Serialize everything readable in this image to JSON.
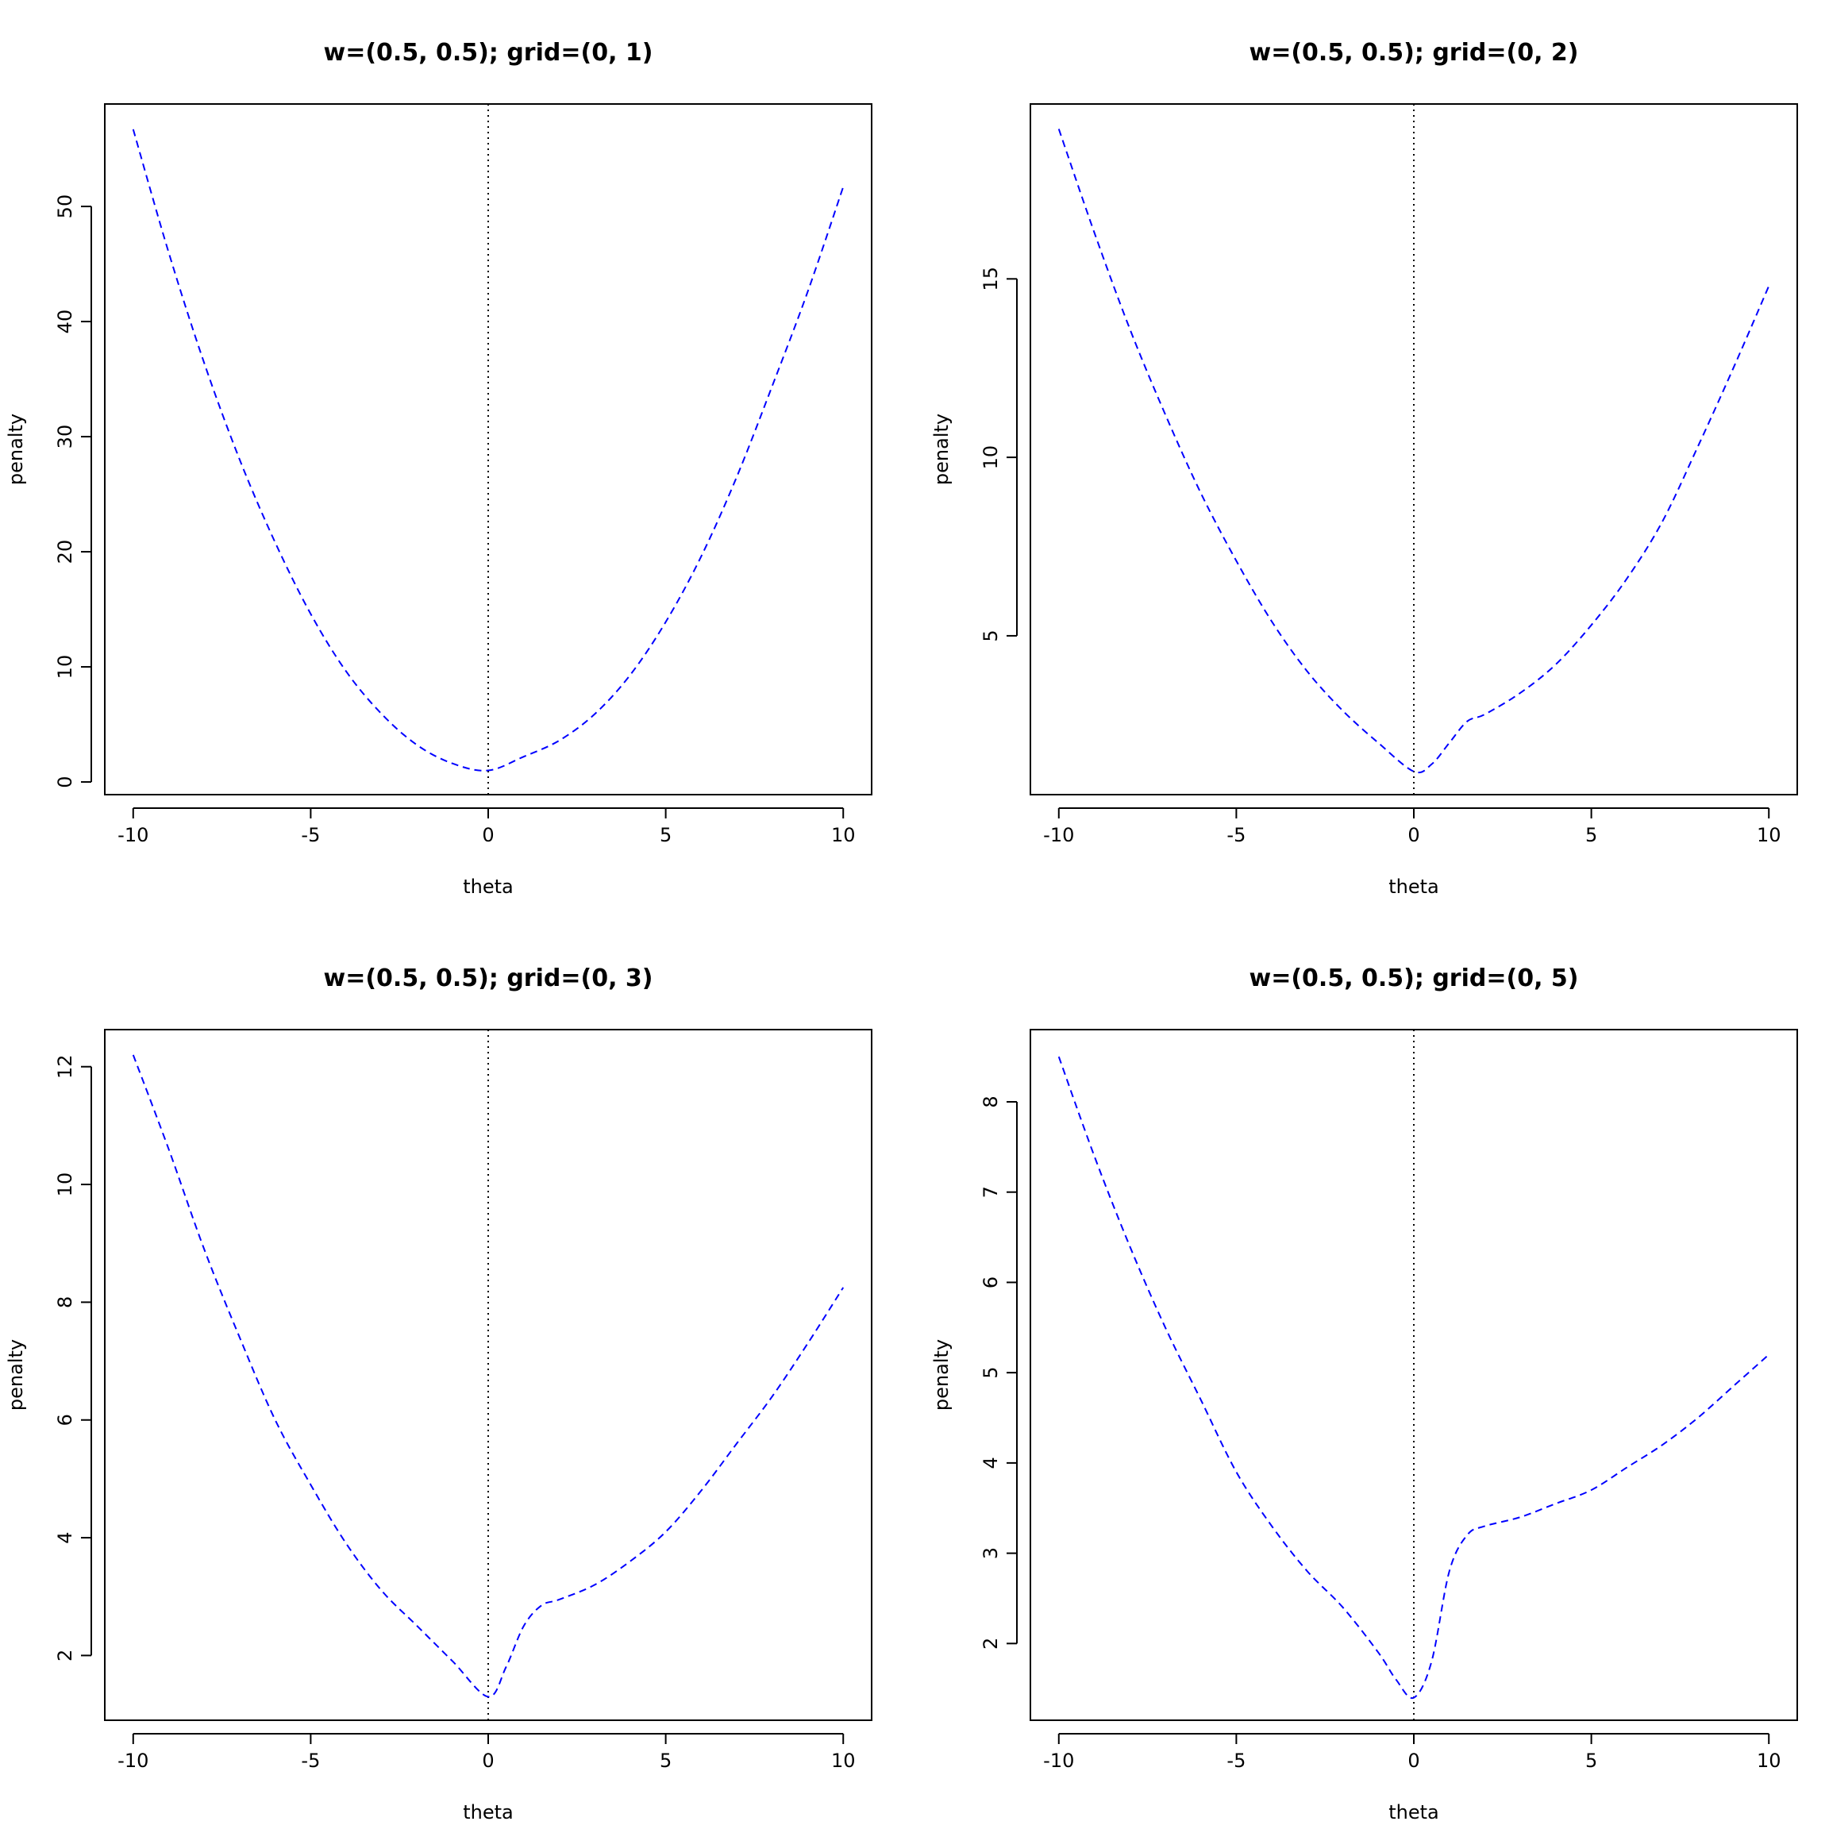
{
  "chart_data": [
    {
      "type": "line",
      "title": "w=(0.5, 0.5); grid=(0, 1)",
      "xlabel": "theta",
      "ylabel": "penalty",
      "xlim": [
        -10.8,
        10.8
      ],
      "ylim": [
        -1.1,
        58.9
      ],
      "xticks": [
        -10,
        -5,
        0,
        5,
        10
      ],
      "xtick_labels": [
        "-10",
        "-5",
        "0",
        "5",
        "10"
      ],
      "yticks": [
        0,
        10,
        20,
        30,
        40,
        50
      ],
      "ytick_labels": [
        "0",
        "10",
        "20",
        "30",
        "40",
        "50"
      ],
      "vline": {
        "x": 0,
        "style": "dotted",
        "color": "#000000"
      },
      "series": [
        {
          "color": "#0000ff",
          "style": "dashed",
          "x": [
            -10,
            -9,
            -8,
            -7,
            -6,
            -5,
            -4,
            -3,
            -2,
            -1,
            0,
            1,
            2,
            3,
            4,
            5,
            6,
            7,
            8,
            9,
            10
          ],
          "y": [
            56.7,
            46.0,
            36.4,
            28.0,
            20.8,
            14.6,
            9.6,
            5.9,
            3.2,
            1.6,
            1.0,
            2.2,
            3.6,
            5.9,
            9.3,
            13.9,
            19.6,
            26.5,
            34.4,
            42.6,
            51.7
          ]
        }
      ]
    },
    {
      "type": "line",
      "title": "w=(0.5, 0.5); grid=(0, 2)",
      "xlabel": "theta",
      "ylabel": "penalty",
      "xlim": [
        -10.8,
        10.8
      ],
      "ylim": [
        0.55,
        19.9
      ],
      "xticks": [
        -10,
        -5,
        0,
        5,
        10
      ],
      "xtick_labels": [
        "-10",
        "-5",
        "0",
        "5",
        "10"
      ],
      "yticks": [
        5,
        10,
        15
      ],
      "ytick_labels": [
        "5",
        "10",
        "15"
      ],
      "vline": {
        "x": 0,
        "style": "dotted",
        "color": "#000000"
      },
      "series": [
        {
          "color": "#0000ff",
          "style": "dashed",
          "x": [
            -10,
            -9,
            -8,
            -7,
            -6,
            -5,
            -4,
            -3,
            -2,
            -1,
            0,
            0.5,
            1,
            1.5,
            2,
            3,
            4,
            5,
            6,
            7,
            8,
            9,
            10
          ],
          "y": [
            19.2,
            16.3,
            13.6,
            11.2,
            9.0,
            7.1,
            5.4,
            4.0,
            2.9,
            2.0,
            1.2,
            1.4,
            2.0,
            2.6,
            2.8,
            3.4,
            4.2,
            5.3,
            6.6,
            8.2,
            10.3,
            12.5,
            14.8
          ]
        }
      ]
    },
    {
      "type": "line",
      "title": "w=(0.5, 0.5); grid=(0, 3)",
      "xlabel": "theta",
      "ylabel": "penalty",
      "xlim": [
        -10.8,
        10.8
      ],
      "ylim": [
        0.9,
        12.63
      ],
      "xticks": [
        -10,
        -5,
        0,
        5,
        10
      ],
      "xtick_labels": [
        "-10",
        "-5",
        "0",
        "5",
        "10"
      ],
      "yticks": [
        2,
        4,
        6,
        8,
        10,
        12
      ],
      "ytick_labels": [
        "2",
        "4",
        "6",
        "8",
        "10",
        "12"
      ],
      "vline": {
        "x": 0,
        "style": "dotted",
        "color": "#000000"
      },
      "series": [
        {
          "color": "#0000ff",
          "style": "dashed",
          "x": [
            -10,
            -9,
            -8,
            -7,
            -6,
            -5,
            -4,
            -3,
            -2,
            -1,
            0,
            0.5,
            1,
            1.5,
            2,
            3,
            4,
            5,
            6,
            7,
            8,
            9,
            10
          ],
          "y": [
            12.2,
            10.6,
            8.9,
            7.4,
            6.0,
            4.9,
            3.9,
            3.1,
            2.5,
            1.9,
            1.3,
            1.8,
            2.5,
            2.85,
            2.95,
            3.2,
            3.6,
            4.1,
            4.8,
            5.6,
            6.4,
            7.3,
            8.25
          ]
        }
      ]
    },
    {
      "type": "line",
      "title": "w=(0.5, 0.5); grid=(0, 5)",
      "xlabel": "theta",
      "ylabel": "penalty",
      "xlim": [
        -10.8,
        10.8
      ],
      "ylim": [
        1.15,
        8.8
      ],
      "xticks": [
        -10,
        -5,
        0,
        5,
        10
      ],
      "xtick_labels": [
        "-10",
        "-5",
        "0",
        "5",
        "10"
      ],
      "yticks": [
        2,
        3,
        4,
        5,
        6,
        7,
        8
      ],
      "ytick_labels": [
        "2",
        "3",
        "4",
        "5",
        "6",
        "7",
        "8"
      ],
      "vline": {
        "x": 0,
        "style": "dotted",
        "color": "#000000"
      },
      "series": [
        {
          "color": "#0000ff",
          "style": "dashed",
          "x": [
            -10,
            -9,
            -8,
            -7,
            -6,
            -5,
            -4,
            -3,
            -2,
            -1,
            -0.5,
            0,
            0.5,
            1,
            1.5,
            2,
            3,
            4,
            5,
            6,
            7,
            8,
            9,
            10
          ],
          "y": [
            8.5,
            7.4,
            6.4,
            5.5,
            4.7,
            3.9,
            3.3,
            2.8,
            2.4,
            1.9,
            1.6,
            1.4,
            1.8,
            2.8,
            3.2,
            3.3,
            3.4,
            3.55,
            3.7,
            3.95,
            4.2,
            4.5,
            4.85,
            5.2
          ]
        }
      ]
    }
  ]
}
